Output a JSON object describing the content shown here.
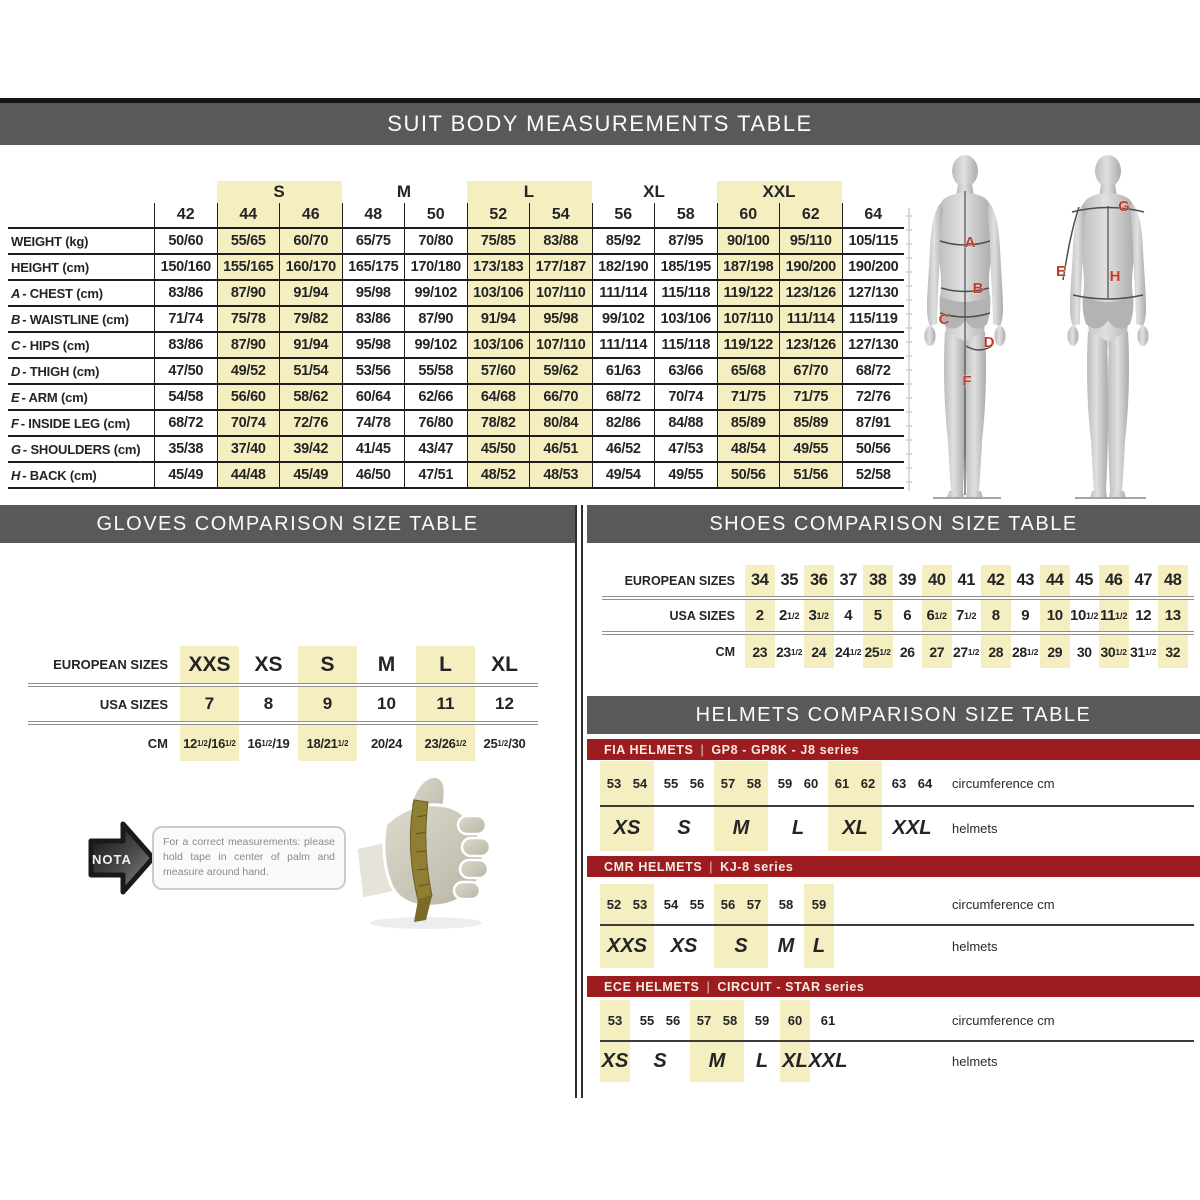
{
  "colors": {
    "bar_gray": "#59595b",
    "highlight_yellow": "#f4eec1",
    "series_red": "#9d1c20",
    "letter_red": "#bf3a2b"
  },
  "suit": {
    "title": "SUIT BODY MEASUREMENTS TABLE",
    "group_headers": [
      {
        "label": "",
        "span": 1,
        "hl": false
      },
      {
        "label": "S",
        "span": 2,
        "hl": true
      },
      {
        "label": "M",
        "span": 2,
        "hl": false
      },
      {
        "label": "L",
        "span": 2,
        "hl": true
      },
      {
        "label": "XL",
        "span": 2,
        "hl": false
      },
      {
        "label": "XXL",
        "span": 2,
        "hl": true
      },
      {
        "label": "",
        "span": 1,
        "hl": false
      }
    ],
    "sizes": [
      "42",
      "44",
      "46",
      "48",
      "50",
      "52",
      "54",
      "56",
      "58",
      "60",
      "62",
      "64"
    ],
    "hl_cols": [
      1,
      2,
      5,
      6,
      9,
      10
    ],
    "rows": [
      {
        "prefix": "",
        "name": "WEIGHT (kg)",
        "values": [
          "50/60",
          "55/65",
          "60/70",
          "65/75",
          "70/80",
          "75/85",
          "83/88",
          "85/92",
          "87/95",
          "90/100",
          "95/110",
          "105/115"
        ]
      },
      {
        "prefix": "",
        "name": "HEIGHT (cm)",
        "values": [
          "150/160",
          "155/165",
          "160/170",
          "165/175",
          "170/180",
          "173/183",
          "177/187",
          "182/190",
          "185/195",
          "187/198",
          "190/200",
          "190/200"
        ]
      },
      {
        "prefix": "A",
        "name": "CHEST (cm)",
        "values": [
          "83/86",
          "87/90",
          "91/94",
          "95/98",
          "99/102",
          "103/106",
          "107/110",
          "111/114",
          "115/118",
          "119/122",
          "123/126",
          "127/130"
        ]
      },
      {
        "prefix": "B",
        "name": "WAISTLINE (cm)",
        "values": [
          "71/74",
          "75/78",
          "79/82",
          "83/86",
          "87/90",
          "91/94",
          "95/98",
          "99/102",
          "103/106",
          "107/110",
          "111/114",
          "115/119"
        ]
      },
      {
        "prefix": "C",
        "name": "HIPS (cm)",
        "values": [
          "83/86",
          "87/90",
          "91/94",
          "95/98",
          "99/102",
          "103/106",
          "107/110",
          "111/114",
          "115/118",
          "119/122",
          "123/126",
          "127/130"
        ]
      },
      {
        "prefix": "D",
        "name": "THIGH (cm)",
        "values": [
          "47/50",
          "49/52",
          "51/54",
          "53/56",
          "55/58",
          "57/60",
          "59/62",
          "61/63",
          "63/66",
          "65/68",
          "67/70",
          "68/72"
        ]
      },
      {
        "prefix": "E",
        "name": "ARM (cm)",
        "values": [
          "54/58",
          "56/60",
          "58/62",
          "60/64",
          "62/66",
          "64/68",
          "66/70",
          "68/72",
          "70/74",
          "71/75",
          "71/75",
          "72/76"
        ]
      },
      {
        "prefix": "F",
        "name": "INSIDE LEG (cm)",
        "values": [
          "68/72",
          "70/74",
          "72/76",
          "74/78",
          "76/80",
          "78/82",
          "80/84",
          "82/86",
          "84/88",
          "85/89",
          "85/89",
          "87/91"
        ]
      },
      {
        "prefix": "G",
        "name": "SHOULDERS (cm)",
        "values": [
          "35/38",
          "37/40",
          "39/42",
          "41/45",
          "43/47",
          "45/50",
          "46/51",
          "46/52",
          "47/53",
          "48/54",
          "49/55",
          "50/56"
        ]
      },
      {
        "prefix": "H",
        "name": "BACK (cm)",
        "values": [
          "45/49",
          "44/48",
          "45/49",
          "46/50",
          "47/51",
          "48/52",
          "48/53",
          "49/54",
          "49/55",
          "50/56",
          "51/56",
          "52/58"
        ]
      }
    ],
    "figure_letters": [
      "A",
      "B",
      "C",
      "D",
      "F",
      "E",
      "G",
      "H"
    ]
  },
  "gloves": {
    "title": "GLOVES COMPARISON SIZE TABLE",
    "row_labels": [
      "EUROPEAN SIZES",
      "USA SIZES",
      "CM"
    ],
    "columns": [
      {
        "eu": "XXS",
        "usa": "7",
        "cm": "12½/16½",
        "hl": true
      },
      {
        "eu": "XS",
        "usa": "8",
        "cm": "16½/19",
        "hl": false
      },
      {
        "eu": "S",
        "usa": "9",
        "cm": "18/21½",
        "hl": true
      },
      {
        "eu": "M",
        "usa": "10",
        "cm": "20/24",
        "hl": false
      },
      {
        "eu": "L",
        "usa": "11",
        "cm": "23/26½",
        "hl": true
      },
      {
        "eu": "XL",
        "usa": "12",
        "cm": "25½/30",
        "hl": false
      }
    ],
    "note": {
      "tag": "NOTA",
      "text": "For a correct measurements: please hold tape in center of palm and measure around hand."
    }
  },
  "shoes": {
    "title": "SHOES COMPARISON SIZE TABLE",
    "row_labels": [
      "EUROPEAN SIZES",
      "USA SIZES",
      "CM"
    ],
    "columns": [
      {
        "eu": "34",
        "usa": "2",
        "cm": "23",
        "hl": true
      },
      {
        "eu": "35",
        "usa": "2½",
        "cm": "23½",
        "hl": false
      },
      {
        "eu": "36",
        "usa": "3½",
        "cm": "24",
        "hl": true
      },
      {
        "eu": "37",
        "usa": "4",
        "cm": "24½",
        "hl": false
      },
      {
        "eu": "38",
        "usa": "5",
        "cm": "25½",
        "hl": true
      },
      {
        "eu": "39",
        "usa": "6",
        "cm": "26",
        "hl": false
      },
      {
        "eu": "40",
        "usa": "6½",
        "cm": "27",
        "hl": true
      },
      {
        "eu": "41",
        "usa": "7½",
        "cm": "27½",
        "hl": false
      },
      {
        "eu": "42",
        "usa": "8",
        "cm": "28",
        "hl": true
      },
      {
        "eu": "43",
        "usa": "9",
        "cm": "28½",
        "hl": false
      },
      {
        "eu": "44",
        "usa": "10",
        "cm": "29",
        "hl": true
      },
      {
        "eu": "45",
        "usa": "10½",
        "cm": "30",
        "hl": false
      },
      {
        "eu": "46",
        "usa": "11½",
        "cm": "30½",
        "hl": true
      },
      {
        "eu": "47",
        "usa": "12",
        "cm": "31½",
        "hl": false
      },
      {
        "eu": "48",
        "usa": "13",
        "cm": "32",
        "hl": true
      }
    ]
  },
  "helmets": {
    "title": "HELMETS COMPARISON SIZE TABLE",
    "col_labels": [
      "circumference cm",
      "helmets"
    ],
    "series": [
      {
        "name": "FIA HELMETS",
        "series": "GP8 - GP8K - J8 series",
        "groups": [
          {
            "size": "XS",
            "nums": [
              "53",
              "54"
            ],
            "hl": true
          },
          {
            "size": "S",
            "nums": [
              "55",
              "56"
            ],
            "hl": false
          },
          {
            "size": "M",
            "nums": [
              "57",
              "58"
            ],
            "hl": true
          },
          {
            "size": "L",
            "nums": [
              "59",
              "60"
            ],
            "hl": false
          },
          {
            "size": "XL",
            "nums": [
              "61",
              "62"
            ],
            "hl": true
          },
          {
            "size": "XXL",
            "nums": [
              "63",
              "64"
            ],
            "hl": false
          }
        ]
      },
      {
        "name": "CMR HELMETS",
        "series": "KJ-8 series",
        "groups": [
          {
            "size": "XXS",
            "nums": [
              "52",
              "53"
            ],
            "hl": true
          },
          {
            "size": "XS",
            "nums": [
              "54",
              "55"
            ],
            "hl": false
          },
          {
            "size": "S",
            "nums": [
              "56",
              "57"
            ],
            "hl": true
          },
          {
            "size": "M",
            "nums": [
              "58"
            ],
            "hl": false
          },
          {
            "size": "L",
            "nums": [
              "59"
            ],
            "hl": true
          }
        ]
      },
      {
        "name": "ECE HELMETS",
        "series": "CIRCUIT - STAR series",
        "groups": [
          {
            "size": "XS",
            "nums": [
              "53"
            ],
            "hl": true
          },
          {
            "size": "S",
            "nums": [
              "55",
              "56"
            ],
            "hl": false
          },
          {
            "size": "M",
            "nums": [
              "57",
              "58"
            ],
            "hl": true
          },
          {
            "size": "L",
            "nums": [
              "59"
            ],
            "hl": false
          },
          {
            "size": "XL",
            "nums": [
              "60"
            ],
            "hl": true
          },
          {
            "size": "XXL",
            "nums": [
              "61"
            ],
            "hl": false
          }
        ]
      }
    ]
  }
}
